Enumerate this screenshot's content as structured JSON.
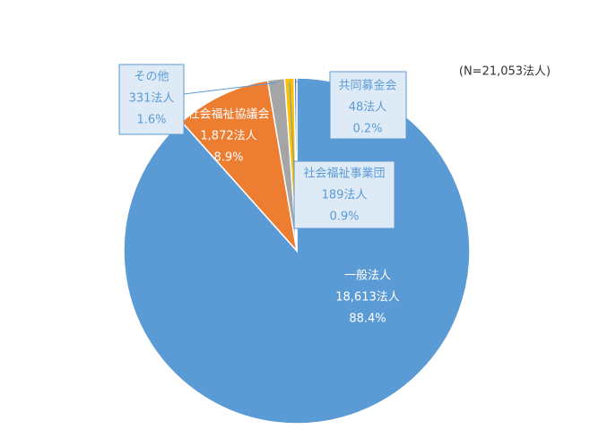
{
  "chart_data": {
    "type": "pie",
    "note": "(N=21,053法人)",
    "categories": [
      "一般法人",
      "社会福祉協議会",
      "その他",
      "社会福祉事業団",
      "共同募金会"
    ],
    "values": [
      18613,
      1872,
      331,
      189,
      48
    ],
    "value_labels": [
      "18,613法人",
      "1,872法人",
      "331法人",
      "189法人",
      "48法人"
    ],
    "percents": [
      88.4,
      8.9,
      1.6,
      0.9,
      0.2
    ],
    "percent_labels": [
      "88.4%",
      "8.9%",
      "1.6%",
      "0.9%",
      "0.2%"
    ],
    "colors": [
      "#5b9bd5",
      "#ed7d31",
      "#a5a5a5",
      "#ffc000",
      "#4472c4"
    ]
  }
}
